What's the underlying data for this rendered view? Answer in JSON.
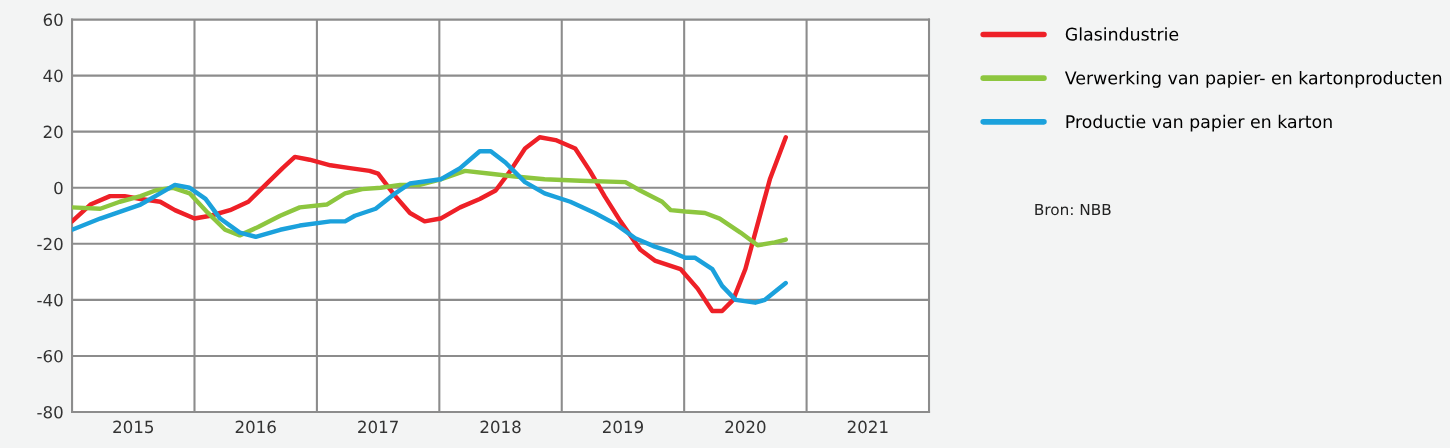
{
  "chart_data": {
    "type": "line",
    "xlim": [
      2015,
      2022
    ],
    "ylim": [
      -80,
      60
    ],
    "yticks": [
      -80,
      -60,
      -40,
      -20,
      0,
      20,
      40,
      60
    ],
    "xticks": [
      {
        "value": 2015.5,
        "label": "2015"
      },
      {
        "value": 2016.5,
        "label": "2016"
      },
      {
        "value": 2017.5,
        "label": "2017"
      },
      {
        "value": 2018.5,
        "label": "2018"
      },
      {
        "value": 2019.5,
        "label": "2019"
      },
      {
        "value": 2020.5,
        "label": "2020"
      },
      {
        "value": 2021.5,
        "label": "2021"
      }
    ],
    "grid": "y",
    "legend": "right",
    "line_style": "solid",
    "marker": "none",
    "ref_lines": [
      {
        "axis": "x",
        "value": 2016,
        "color": "#8c8c8c"
      },
      {
        "axis": "x",
        "value": 2017,
        "color": "#8c8c8c"
      },
      {
        "axis": "x",
        "value": 2018,
        "color": "#8c8c8c"
      },
      {
        "axis": "x",
        "value": 2019,
        "color": "#8c8c8c"
      },
      {
        "axis": "x",
        "value": 2020,
        "color": "#8c8c8c"
      },
      {
        "axis": "x",
        "value": 2021,
        "color": "#8c8c8c"
      }
    ],
    "annotations": [
      "Bron: NBB"
    ],
    "series": [
      {
        "name": "Glasindustrie",
        "color": "#ee2027",
        "x": [
          2015.0,
          2015.15,
          2015.31,
          2015.43,
          2015.56,
          2015.72,
          2015.84,
          2016.0,
          2016.13,
          2016.29,
          2016.44,
          2016.58,
          2016.72,
          2016.82,
          2016.94,
          2017.11,
          2017.27,
          2017.43,
          2017.5,
          2017.64,
          2017.76,
          2017.88,
          2018.01,
          2018.17,
          2018.33,
          2018.46,
          2018.58,
          2018.7,
          2018.82,
          2018.95,
          2019.11,
          2019.23,
          2019.35,
          2019.48,
          2019.64,
          2019.76,
          2019.97,
          2020.11,
          2020.17,
          2020.23,
          2020.31,
          2020.4,
          2020.5,
          2020.6,
          2020.7,
          2020.83
        ],
        "values": [
          -12,
          -6,
          -3,
          -3,
          -4,
          -5,
          -8,
          -11,
          -10,
          -8,
          -5,
          1,
          7,
          11,
          10,
          8,
          7,
          6,
          5,
          -3,
          -9,
          -12,
          -11,
          -7,
          -4,
          -1,
          6,
          14,
          18,
          17,
          14,
          6,
          -3,
          -12,
          -22,
          -26,
          -29,
          -36,
          -40,
          -44,
          -44,
          -40,
          -29,
          -13,
          3,
          18
        ]
      },
      {
        "name": "Verwerking van papier- en kartonproducten",
        "color": "#8dc63f",
        "x": [
          2015.0,
          2015.23,
          2015.39,
          2015.56,
          2015.68,
          2015.82,
          2015.96,
          2016.11,
          2016.25,
          2016.37,
          2016.52,
          2016.7,
          2016.86,
          2017.08,
          2017.23,
          2017.37,
          2017.52,
          2017.68,
          2017.84,
          2018.01,
          2018.21,
          2018.42,
          2018.62,
          2018.86,
          2019.15,
          2019.52,
          2019.64,
          2019.82,
          2019.89,
          2020.01,
          2020.17,
          2020.29,
          2020.46,
          2020.6,
          2020.74,
          2020.83
        ],
        "values": [
          -7,
          -7.5,
          -5,
          -3,
          -1,
          0,
          -2,
          -9,
          -15,
          -17,
          -14,
          -10,
          -7,
          -6,
          -2,
          -0.5,
          0,
          1,
          1,
          3,
          6,
          5,
          4,
          3,
          2.5,
          2,
          -1,
          -5,
          -8,
          -8.5,
          -9,
          -11,
          -16,
          -20.5,
          -19.5,
          -18.5
        ]
      },
      {
        "name": "Productie van papier en karton",
        "color": "#1ba1dc",
        "x": [
          2015.0,
          2015.23,
          2015.43,
          2015.56,
          2015.72,
          2015.84,
          2015.96,
          2016.09,
          2016.21,
          2016.37,
          2016.5,
          2016.7,
          2016.86,
          2017.11,
          2017.23,
          2017.31,
          2017.48,
          2017.64,
          2017.76,
          2018.01,
          2018.17,
          2018.33,
          2018.42,
          2018.54,
          2018.7,
          2018.86,
          2019.07,
          2019.27,
          2019.44,
          2019.6,
          2019.76,
          2019.9,
          2020.01,
          2020.09,
          2020.23,
          2020.31,
          2020.42,
          2020.58,
          2020.66,
          2020.83
        ],
        "values": [
          -15,
          -11,
          -8,
          -6,
          -2,
          1,
          0,
          -4,
          -11,
          -16,
          -17.5,
          -15,
          -13.5,
          -12,
          -12,
          -10,
          -7.5,
          -2,
          1.5,
          3,
          7,
          13,
          13,
          9,
          2,
          -2,
          -5,
          -9,
          -13,
          -18,
          -21,
          -23,
          -25,
          -25,
          -29,
          -35,
          -40,
          -41,
          -40,
          -34
        ]
      }
    ]
  }
}
